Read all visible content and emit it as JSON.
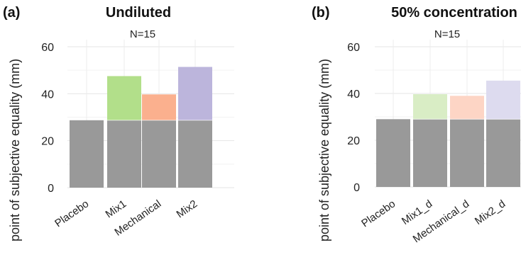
{
  "chart_data": [
    {
      "type": "bar",
      "panel_label": "(a)",
      "title": "Undiluted",
      "annotation": "N=15",
      "ylabel": "point of subjective equality (mm)",
      "xlabel": "",
      "ylim": [
        0,
        60
      ],
      "yticks": [
        0,
        20,
        40,
        60
      ],
      "grid": true,
      "stacked": true,
      "categories": [
        "Placebo",
        "Mix1",
        "Mechanical",
        "Mix2"
      ],
      "series": [
        {
          "values": [
            28.7,
            28.7,
            28.7,
            28.7
          ],
          "color": "#999999"
        },
        {
          "values": [
            0,
            18.8,
            11.0,
            22.7
          ],
          "colors": [
            "#999999",
            "#b2df8a",
            "#fbb08e",
            "#bcb5dc"
          ]
        }
      ]
    },
    {
      "type": "bar",
      "panel_label": "(b)",
      "title": "50% concentration",
      "annotation": "N=15",
      "ylabel": "point of subjective equality (mm)",
      "xlabel": "",
      "ylim": [
        0,
        60
      ],
      "yticks": [
        0,
        20,
        40,
        60
      ],
      "grid": true,
      "stacked": true,
      "categories": [
        "Placebo",
        "Mix1_d",
        "Mechanical_d",
        "Mix2_d"
      ],
      "series": [
        {
          "values": [
            29.0,
            29.0,
            29.0,
            29.0
          ],
          "color": "#999999"
        },
        {
          "values": [
            0,
            10.7,
            10.0,
            16.5
          ],
          "colors": [
            "#999999",
            "#d9edc5",
            "#fdd5c5",
            "#dddbef"
          ]
        }
      ]
    }
  ]
}
